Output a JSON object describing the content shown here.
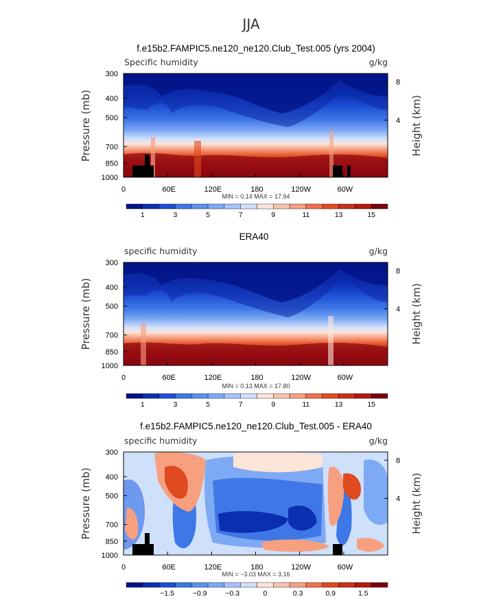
{
  "figure_title": "JJA",
  "chart_data": [
    {
      "type": "heatmap",
      "title": "f.e15b2.FAMPIC5.ne120_ne120.Club_Test.005 (yrs 2004)",
      "left_label": "Specific humidity",
      "right_label": "g/kg",
      "ylabel": "Pressure (mb)",
      "y2label": "Height (km)",
      "xlabel": "",
      "x_ticks": [
        "0",
        "60E",
        "120E",
        "180",
        "120W",
        "60W"
      ],
      "x_tick_values": [
        0,
        60,
        120,
        180,
        240,
        300
      ],
      "xlim": [
        0,
        360
      ],
      "y_ticks": [
        "300",
        "400",
        "500",
        "700",
        "850",
        "1000"
      ],
      "y_tick_values": [
        300,
        400,
        500,
        700,
        850,
        1000
      ],
      "ylim": [
        1000,
        300
      ],
      "y2_ticks": [
        "8",
        "4"
      ],
      "stats": "MIN =    0.14   MAX =   17.94",
      "colorbar_labels": [
        "1",
        "3",
        "5",
        "7",
        "9",
        "11",
        "13",
        "15"
      ],
      "colorbar_levels": [
        0,
        1,
        2,
        3,
        4,
        5,
        6,
        7,
        8,
        9,
        10,
        11,
        12,
        13,
        14,
        15,
        16
      ],
      "min": 0.14,
      "max": 17.94,
      "terrain": true
    },
    {
      "type": "heatmap",
      "title": "ERA40",
      "left_label": "specific humidity",
      "right_label": "g/kg",
      "ylabel": "Pressure (mb)",
      "y2label": "Height (km)",
      "xlabel": "",
      "x_ticks": [
        "0",
        "60E",
        "120E",
        "180",
        "120W",
        "60W"
      ],
      "x_tick_values": [
        0,
        60,
        120,
        180,
        240,
        300
      ],
      "xlim": [
        0,
        360
      ],
      "y_ticks": [
        "300",
        "400",
        "500",
        "700",
        "850",
        "1000"
      ],
      "y_tick_values": [
        300,
        400,
        500,
        700,
        850,
        1000
      ],
      "ylim": [
        1000,
        300
      ],
      "y2_ticks": [
        "8",
        "4"
      ],
      "stats": "MIN =    0.13   MAX =   17.80",
      "colorbar_labels": [
        "1",
        "3",
        "5",
        "7",
        "9",
        "11",
        "13",
        "15"
      ],
      "colorbar_levels": [
        0,
        1,
        2,
        3,
        4,
        5,
        6,
        7,
        8,
        9,
        10,
        11,
        12,
        13,
        14,
        15,
        16
      ],
      "min": 0.13,
      "max": 17.8,
      "terrain": false
    },
    {
      "type": "heatmap",
      "title": "f.e15b2.FAMPIC5.ne120_ne120.Club_Test.005 - ERA40",
      "left_label": "specific humidity",
      "right_label": "g/kg",
      "ylabel": "Pressure (mb)",
      "y2label": "Height (km)",
      "xlabel": "",
      "x_ticks": [
        "0",
        "60E",
        "120E",
        "180",
        "120W",
        "60W"
      ],
      "x_tick_values": [
        0,
        60,
        120,
        180,
        240,
        300
      ],
      "xlim": [
        0,
        360
      ],
      "y_ticks": [
        "300",
        "400",
        "500",
        "700",
        "850",
        "1000"
      ],
      "y_tick_values": [
        300,
        400,
        500,
        700,
        850,
        1000
      ],
      "ylim": [
        1000,
        300
      ],
      "y2_ticks": [
        "8",
        "4"
      ],
      "stats": "MIN =   −3.03   MAX =    3.16",
      "colorbar_labels": [
        "−1.5",
        "−0.9",
        "−0.3",
        "0",
        "0.3",
        "0.9",
        "1.5"
      ],
      "colorbar_levels": [
        -2.1,
        -1.8,
        -1.5,
        -1.2,
        -0.9,
        -0.6,
        -0.3,
        0,
        0.3,
        0.6,
        0.9,
        1.2,
        1.5,
        1.8,
        2.1
      ],
      "min": -3.03,
      "max": 3.16,
      "terrain": true
    }
  ]
}
